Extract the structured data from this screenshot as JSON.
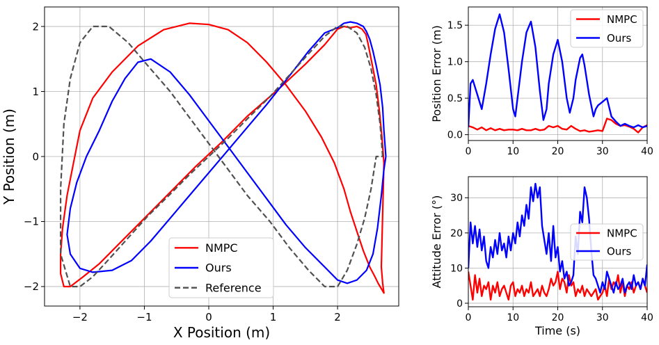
{
  "chart_data": [
    {
      "type": "line",
      "id": "trajectory",
      "title": "",
      "xlabel": "X Position (m)",
      "ylabel": "Y Position (m)",
      "xlim": [
        -2.55,
        2.95
      ],
      "ylim": [
        -2.3,
        2.3
      ],
      "xticks": [
        -2,
        -1,
        0,
        1,
        2
      ],
      "yticks": [
        -2,
        -1,
        0,
        1,
        2
      ],
      "xtick_labels": [
        "−2",
        "−1",
        "0",
        "1",
        "2"
      ],
      "ytick_labels": [
        "−2",
        "−1",
        "0",
        "1",
        "2"
      ],
      "grid": true,
      "legend_position": "lower-center",
      "series": [
        {
          "name": "NMPC",
          "color": "#ff0000",
          "dash": "",
          "x": [
            2.72,
            2.69,
            2.65,
            2.6,
            2.54,
            2.5,
            2.47,
            2.44,
            2.38,
            2.3,
            2.2,
            2.1,
            2.0,
            1.8,
            1.5,
            1.1,
            0.6,
            0.2,
            -0.2,
            -0.5,
            -0.8,
            -1.1,
            -1.4,
            -1.7,
            -1.95,
            -2.15,
            -2.25,
            -2.3,
            -2.3,
            -2.27,
            -2.2,
            -2.1,
            -2.0,
            -1.8,
            -1.5,
            -1.1,
            -0.7,
            -0.3,
            0.0,
            0.3,
            0.6,
            0.9,
            1.2,
            1.5,
            1.75,
            1.95,
            2.1,
            2.2,
            2.3,
            2.4,
            2.5,
            2.58,
            2.63,
            2.66,
            2.69,
            2.72,
            2.7,
            2.68,
            2.72
          ],
          "y": [
            -0.1,
            0.3,
            0.7,
            1.1,
            1.4,
            1.6,
            1.75,
            1.88,
            1.96,
            2.0,
            1.98,
            2.0,
            1.96,
            1.72,
            1.42,
            1.05,
            0.62,
            0.22,
            -0.15,
            -0.45,
            -0.75,
            -1.05,
            -1.35,
            -1.65,
            -1.85,
            -2.0,
            -2.0,
            -1.8,
            -1.5,
            -1.1,
            -0.6,
            -0.1,
            0.4,
            0.9,
            1.3,
            1.7,
            1.95,
            2.05,
            2.03,
            1.95,
            1.75,
            1.45,
            1.1,
            0.7,
            0.3,
            -0.1,
            -0.5,
            -0.85,
            -1.15,
            -1.45,
            -1.7,
            -1.85,
            -1.95,
            -2.0,
            -2.05,
            -2.1,
            -1.95,
            -1.7,
            -0.1
          ]
        },
        {
          "name": "Ours",
          "color": "#0000ff",
          "dash": "",
          "x": [
            2.75,
            2.72,
            2.7,
            2.66,
            2.6,
            2.55,
            2.5,
            2.45,
            2.4,
            2.3,
            2.2,
            2.1,
            2.0,
            1.8,
            1.55,
            1.3,
            1.1,
            0.9,
            0.6,
            0.3,
            0.0,
            -0.3,
            -0.6,
            -0.9,
            -1.2,
            -1.5,
            -1.8,
            -2.0,
            -2.15,
            -2.2,
            -2.15,
            -2.05,
            -1.9,
            -1.7,
            -1.5,
            -1.3,
            -1.1,
            -0.9,
            -0.6,
            -0.3,
            0.0,
            0.3,
            0.6,
            0.9,
            1.2,
            1.5,
            1.8,
            2.0,
            2.15,
            2.3,
            2.45,
            2.55,
            2.62,
            2.68,
            2.72,
            2.75
          ],
          "y": [
            0.0,
            0.4,
            0.75,
            1.1,
            1.4,
            1.62,
            1.8,
            1.92,
            2.0,
            2.05,
            2.07,
            2.05,
            1.98,
            1.9,
            1.62,
            1.3,
            1.05,
            0.8,
            0.45,
            0.1,
            -0.25,
            -0.6,
            -0.95,
            -1.3,
            -1.6,
            -1.75,
            -1.78,
            -1.72,
            -1.5,
            -1.2,
            -0.8,
            -0.4,
            0.0,
            0.4,
            0.85,
            1.2,
            1.45,
            1.5,
            1.3,
            0.95,
            0.55,
            0.15,
            -0.25,
            -0.65,
            -1.05,
            -1.4,
            -1.7,
            -1.9,
            -1.95,
            -1.9,
            -1.75,
            -1.5,
            -1.1,
            -0.6,
            -0.2,
            0.0
          ]
        },
        {
          "name": "Reference",
          "color": "#505050",
          "dash": "8,4",
          "x": [
            2.7,
            2.66,
            2.6,
            2.52,
            2.42,
            2.3,
            2.15,
            2.0,
            1.8,
            1.55,
            1.25,
            0.95,
            0.6,
            0.3,
            0.0,
            -0.3,
            -0.6,
            -0.95,
            -1.25,
            -1.55,
            -1.8,
            -2.0,
            -2.15,
            -2.3,
            -2.3,
            -2.25,
            -2.15,
            -2.0,
            -1.8,
            -1.55,
            -1.25,
            -0.95,
            -0.6,
            -0.3,
            0.0,
            0.3,
            0.6,
            0.95,
            1.25,
            1.55,
            1.8,
            2.0,
            2.15,
            2.3,
            2.42,
            2.52,
            2.6,
            2.66,
            2.7
          ],
          "y": [
            0.0,
            0.5,
            0.95,
            1.35,
            1.68,
            1.9,
            2.0,
            2.0,
            1.85,
            1.58,
            1.25,
            0.92,
            0.58,
            0.28,
            0.0,
            -0.28,
            -0.58,
            -0.92,
            -1.25,
            -1.58,
            -1.85,
            -2.0,
            -2.0,
            -1.5,
            -0.5,
            0.5,
            1.2,
            1.75,
            2.0,
            2.0,
            1.75,
            1.4,
            1.0,
            0.6,
            0.2,
            -0.2,
            -0.6,
            -1.0,
            -1.4,
            -1.75,
            -2.0,
            -2.0,
            -1.75,
            -1.35,
            -0.95,
            -0.5,
            0.0,
            0.0,
            0.0
          ]
        }
      ]
    },
    {
      "type": "line",
      "id": "position-error",
      "title": "",
      "xlabel": "",
      "ylabel": "Position Error (m)",
      "xlim": [
        0,
        40
      ],
      "ylim": [
        -0.08,
        1.75
      ],
      "xticks": [
        0,
        10,
        20,
        30,
        40
      ],
      "yticks": [
        0.0,
        0.5,
        1.0,
        1.5
      ],
      "xtick_labels": [
        "0",
        "10",
        "20",
        "30",
        "40"
      ],
      "ytick_labels": [
        "0.0",
        "0.5",
        "1.0",
        "1.5"
      ],
      "grid": true,
      "legend_position": "top-right",
      "series": [
        {
          "name": "NMPC",
          "color": "#ff0000",
          "x": [
            0,
            1,
            2,
            3,
            4,
            5,
            6,
            7,
            8,
            9,
            10,
            11,
            12,
            13,
            14,
            15,
            16,
            17,
            18,
            19,
            20,
            21,
            22,
            23,
            24,
            25,
            26,
            27,
            28,
            29,
            30,
            31,
            32,
            33,
            34,
            35,
            36,
            37,
            38,
            39,
            40
          ],
          "y": [
            0.12,
            0.1,
            0.07,
            0.1,
            0.06,
            0.09,
            0.06,
            0.08,
            0.06,
            0.07,
            0.07,
            0.06,
            0.08,
            0.06,
            0.06,
            0.08,
            0.06,
            0.07,
            0.12,
            0.1,
            0.12,
            0.08,
            0.07,
            0.12,
            0.08,
            0.05,
            0.06,
            0.04,
            0.05,
            0.06,
            0.05,
            0.22,
            0.2,
            0.15,
            0.12,
            0.13,
            0.11,
            0.08,
            0.03,
            0.1,
            0.13
          ]
        },
        {
          "name": "Ours",
          "color": "#0000ff",
          "x": [
            0,
            0.5,
            1,
            2,
            3,
            4,
            5,
            6,
            7,
            8,
            9,
            10,
            10.5,
            11,
            12,
            13,
            14,
            15,
            16,
            16.8,
            17.5,
            18,
            19,
            20,
            21,
            22,
            22.7,
            23.5,
            24,
            25,
            25.5,
            26,
            27,
            28,
            28.5,
            29,
            30,
            31,
            32,
            33,
            34,
            35,
            36,
            37,
            38,
            39,
            40
          ],
          "y": [
            0.1,
            0.7,
            0.75,
            0.55,
            0.35,
            0.7,
            1.1,
            1.45,
            1.65,
            1.4,
            0.9,
            0.35,
            0.25,
            0.5,
            1.0,
            1.4,
            1.55,
            1.2,
            0.6,
            0.2,
            0.35,
            0.7,
            1.1,
            1.3,
            1.0,
            0.5,
            0.3,
            0.5,
            0.75,
            1.05,
            1.1,
            0.95,
            0.55,
            0.25,
            0.35,
            0.4,
            0.45,
            0.5,
            0.25,
            0.18,
            0.12,
            0.15,
            0.12,
            0.1,
            0.13,
            0.1,
            0.12
          ]
        }
      ]
    },
    {
      "type": "line",
      "id": "attitude-error",
      "title": "",
      "xlabel": "Time (s)",
      "ylabel": "Attitude Error (°)",
      "xlim": [
        0,
        40
      ],
      "ylim": [
        -1,
        36
      ],
      "xticks": [
        0,
        10,
        20,
        30,
        40
      ],
      "yticks": [
        0,
        10,
        20,
        30
      ],
      "xtick_labels": [
        "0",
        "10",
        "20",
        "30",
        "40"
      ],
      "ytick_labels": [
        "0",
        "10",
        "20",
        "30"
      ],
      "grid": true,
      "legend_position": "center-right",
      "series": [
        {
          "name": "NMPC",
          "color": "#ff0000",
          "x": [
            0,
            0.5,
            1,
            1.5,
            2,
            2.5,
            3,
            3.5,
            4,
            4.5,
            5,
            5.5,
            6,
            6.5,
            7,
            7.5,
            8,
            8.5,
            9,
            9.5,
            10,
            10.5,
            11,
            11.5,
            12,
            12.5,
            13,
            13.5,
            14,
            14.5,
            15,
            15.5,
            16,
            16.5,
            17,
            17.5,
            18,
            18.5,
            19,
            19.5,
            20,
            20.5,
            21,
            21.5,
            22,
            22.5,
            23,
            23.5,
            24,
            24.5,
            25,
            25.5,
            26,
            26.5,
            27,
            27.5,
            28,
            28.5,
            29,
            29.5,
            30,
            30.5,
            31,
            31.5,
            32,
            32.5,
            33,
            33.5,
            34,
            34.5,
            35,
            35.5,
            36,
            36.5,
            37,
            37.5,
            38,
            38.5,
            39,
            39.5,
            40
          ],
          "y": [
            9,
            5,
            1,
            8,
            3,
            7,
            2,
            5,
            4,
            6,
            1,
            5,
            3,
            6,
            2,
            4,
            5,
            3,
            1,
            5,
            6,
            2,
            4,
            3,
            5,
            2,
            4,
            3,
            6,
            2,
            3,
            4,
            2,
            5,
            3,
            2,
            4,
            7,
            5,
            6,
            9,
            4,
            7,
            6,
            3,
            8,
            5,
            6,
            2,
            4,
            3,
            5,
            2,
            4,
            3,
            2,
            3,
            4,
            1,
            2,
            3,
            5,
            2,
            7,
            4,
            6,
            5,
            8,
            3,
            6,
            2,
            5,
            4,
            6,
            3,
            5,
            6,
            4,
            7,
            5,
            3
          ]
        },
        {
          "name": "Ours",
          "color": "#0000ff",
          "x": [
            0,
            0.5,
            1,
            1.5,
            2,
            2.5,
            3,
            3.5,
            4,
            4.5,
            5,
            5.5,
            6,
            6.5,
            7,
            7.5,
            8,
            8.5,
            9,
            9.5,
            10,
            10.5,
            11,
            11.5,
            12,
            12.5,
            13,
            13.5,
            14,
            14.5,
            15,
            15.5,
            16,
            16.5,
            17,
            17.5,
            18,
            18.5,
            19,
            19.5,
            20,
            20.5,
            21,
            21.5,
            22,
            22.5,
            23,
            23.5,
            24,
            24.5,
            25,
            25.5,
            26,
            26.5,
            27,
            27.5,
            28,
            28.5,
            29,
            29.5,
            30,
            30.5,
            31,
            31.5,
            32,
            32.5,
            33,
            33.5,
            34,
            34.5,
            35,
            35.5,
            36,
            36.5,
            37,
            37.5,
            38,
            38.5,
            39,
            39.5,
            40
          ],
          "y": [
            10,
            23,
            17,
            22,
            16,
            21,
            15,
            19,
            12,
            10,
            16,
            13,
            18,
            14,
            20,
            15,
            17,
            13,
            19,
            15,
            20,
            17,
            23,
            19,
            25,
            22,
            28,
            24,
            33,
            29,
            34,
            30,
            33,
            22,
            18,
            14,
            20,
            12,
            22,
            13,
            16,
            9,
            12,
            7,
            9,
            5,
            6,
            8,
            19,
            14,
            26,
            23,
            33,
            30,
            24,
            15,
            8,
            7,
            5,
            3,
            6,
            4,
            9,
            7,
            5,
            3,
            6,
            4,
            5,
            7,
            3,
            5,
            6,
            4,
            8,
            5,
            6,
            4,
            7,
            5,
            11
          ]
        }
      ]
    }
  ]
}
